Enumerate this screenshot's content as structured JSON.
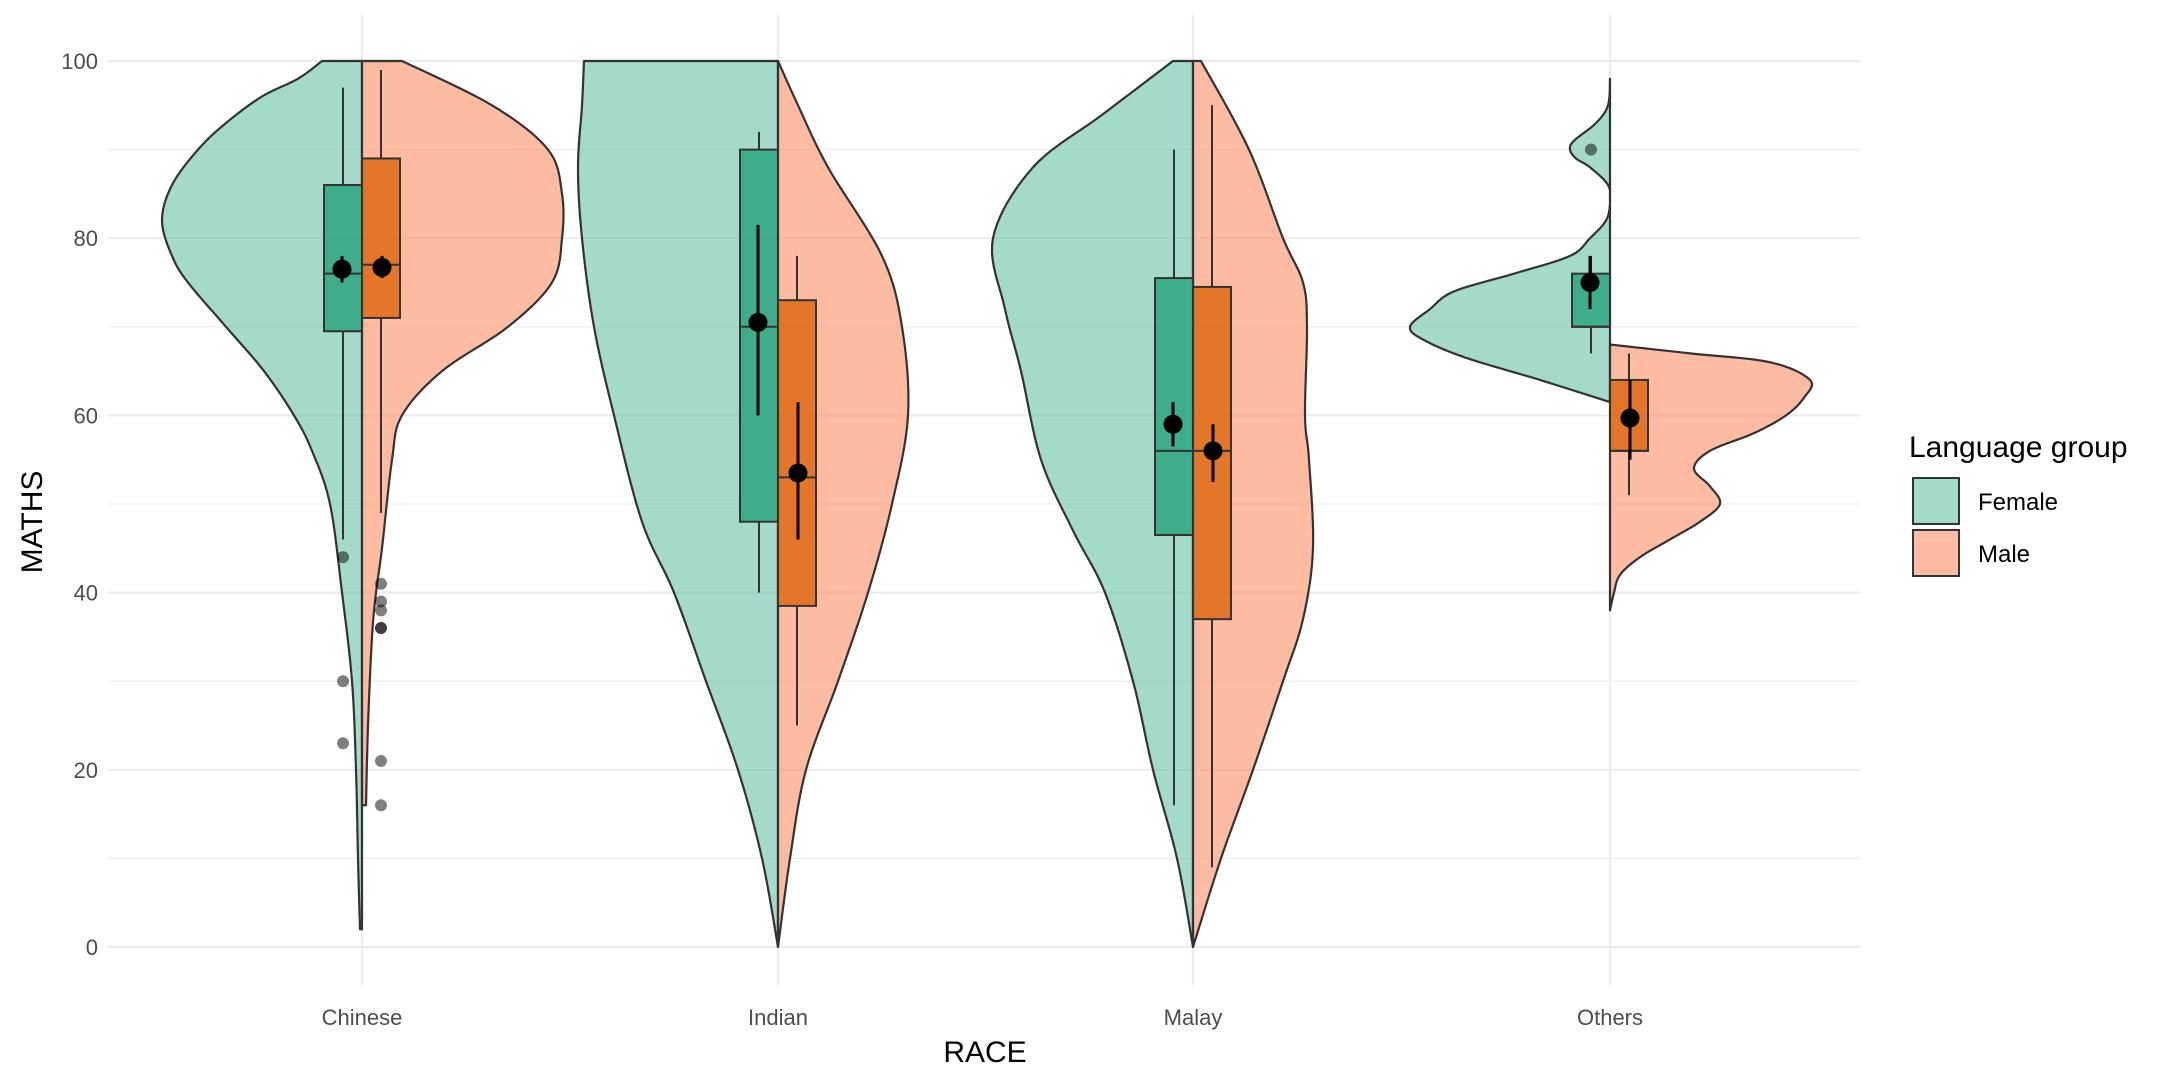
{
  "chart_data": {
    "type": "violin",
    "xlabel": "RACE",
    "ylabel": "MATHS",
    "ylim": [
      0,
      100
    ],
    "yticks": [
      0,
      20,
      40,
      60,
      80,
      100
    ],
    "categories": [
      "Chinese",
      "Indian",
      "Malay",
      "Others"
    ],
    "grid": true,
    "legend": {
      "title": "Language group",
      "placement": "right",
      "entries": [
        "Female",
        "Male"
      ]
    },
    "colors": {
      "Female_fill": "#66c2a5",
      "Male_fill": "#fc8d62",
      "Female_box": "#1b9e77",
      "Male_box": "#d95f02",
      "outline": "#333333",
      "grid": "#ebebeb"
    },
    "series": [
      {
        "name": "Female",
        "groups": [
          {
            "category": "Chinese",
            "violin_min": 2,
            "violin_max": 100,
            "density": [
              [
                2,
                0.01
              ],
              [
                10,
                0.02
              ],
              [
                20,
                0.03
              ],
              [
                30,
                0.05
              ],
              [
                40,
                0.1
              ],
              [
                50,
                0.16
              ],
              [
                56,
                0.25
              ],
              [
                60,
                0.34
              ],
              [
                65,
                0.49
              ],
              [
                70,
                0.68
              ],
              [
                75,
                0.87
              ],
              [
                78,
                0.95
              ],
              [
                82,
                1.0
              ],
              [
                86,
                0.95
              ],
              [
                90,
                0.82
              ],
              [
                93,
                0.68
              ],
              [
                96,
                0.5
              ],
              [
                98,
                0.32
              ],
              [
                100,
                0.2
              ]
            ],
            "box": {
              "q1": 69.5,
              "median": 76,
              "q3": 86,
              "whisker_low": 46,
              "whisker_high": 97
            },
            "mean": 76.5,
            "ci": [
              75,
              78
            ],
            "outliers": [
              44,
              30,
              23
            ]
          },
          {
            "category": "Indian",
            "violin_min": 0,
            "violin_max": 100,
            "density": [
              [
                0,
                0.0
              ],
              [
                10,
                0.08
              ],
              [
                20,
                0.2
              ],
              [
                30,
                0.36
              ],
              [
                40,
                0.52
              ],
              [
                48,
                0.68
              ],
              [
                60,
                0.82
              ],
              [
                70,
                0.92
              ],
              [
                80,
                0.98
              ],
              [
                88,
                1.0
              ],
              [
                95,
                0.98
              ],
              [
                100,
                0.97
              ]
            ],
            "box": {
              "q1": 48,
              "median": 70,
              "q3": 90,
              "whisker_low": 40,
              "whisker_high": 92
            },
            "mean": 70.5,
            "ci": [
              60,
              81.5
            ],
            "outliers": []
          },
          {
            "category": "Malay",
            "violin_min": 0,
            "violin_max": 100,
            "density": [
              [
                0,
                0.0
              ],
              [
                10,
                0.08
              ],
              [
                20,
                0.2
              ],
              [
                30,
                0.3
              ],
              [
                40,
                0.44
              ],
              [
                47,
                0.6
              ],
              [
                55,
                0.76
              ],
              [
                65,
                0.86
              ],
              [
                72,
                0.94
              ],
              [
                80,
                1.0
              ],
              [
                88,
                0.8
              ],
              [
                94,
                0.45
              ],
              [
                100,
                0.1
              ]
            ],
            "box": {
              "q1": 46.5,
              "median": 56,
              "q3": 75.5,
              "whisker_low": 16,
              "whisker_high": 90
            },
            "mean": 59,
            "ci": [
              56.5,
              61.5
            ],
            "outliers": []
          },
          {
            "category": "Others",
            "violin_min": 61.5,
            "violin_max": 98,
            "density": [
              [
                61.5,
                0.0
              ],
              [
                64,
                0.35
              ],
              [
                66.5,
                0.72
              ],
              [
                68.5,
                0.93
              ],
              [
                70,
                1.0
              ],
              [
                72,
                0.9
              ],
              [
                74,
                0.78
              ],
              [
                76,
                0.48
              ],
              [
                78,
                0.2
              ],
              [
                80,
                0.1
              ],
              [
                82,
                0.02
              ],
              [
                84,
                0.0
              ],
              [
                86,
                0.01
              ],
              [
                88,
                0.1
              ],
              [
                89,
                0.17
              ],
              [
                90,
                0.2
              ],
              [
                91,
                0.18
              ],
              [
                93,
                0.07
              ],
              [
                95,
                0.01
              ],
              [
                98,
                0.0
              ]
            ],
            "box": {
              "q1": 70,
              "median": 70,
              "q3": 76,
              "whisker_low": 67,
              "whisker_high": 78
            },
            "mean": 75,
            "ci": [
              72,
              78
            ],
            "outliers": [
              90
            ]
          }
        ]
      },
      {
        "name": "Male",
        "groups": [
          {
            "category": "Chinese",
            "violin_min": 16,
            "violin_max": 100,
            "density": [
              [
                16,
                0.02
              ],
              [
                25,
                0.03
              ],
              [
                35,
                0.05
              ],
              [
                40,
                0.07
              ],
              [
                45,
                0.1
              ],
              [
                55,
                0.15
              ],
              [
                60,
                0.2
              ],
              [
                65,
                0.4
              ],
              [
                70,
                0.73
              ],
              [
                75,
                0.95
              ],
              [
                80,
                1.0
              ],
              [
                85,
                1.0
              ],
              [
                90,
                0.93
              ],
              [
                95,
                0.65
              ],
              [
                100,
                0.2
              ]
            ],
            "box": {
              "q1": 71,
              "median": 77,
              "q3": 89,
              "whisker_low": 49,
              "whisker_high": 99
            },
            "mean": 76.7,
            "ci": [
              75.5,
              78
            ],
            "outliers": [
              41,
              39,
              38,
              36,
              36,
              21,
              16
            ]
          },
          {
            "category": "Indian",
            "violin_min": 0,
            "violin_max": 100,
            "density": [
              [
                0,
                0.0
              ],
              [
                10,
                0.06
              ],
              [
                20,
                0.14
              ],
              [
                30,
                0.3
              ],
              [
                40,
                0.45
              ],
              [
                50,
                0.57
              ],
              [
                60,
                0.65
              ],
              [
                70,
                0.62
              ],
              [
                78,
                0.52
              ],
              [
                88,
                0.25
              ],
              [
                95,
                0.1
              ],
              [
                100,
                0.0
              ]
            ],
            "box": {
              "q1": 38.5,
              "median": 53,
              "q3": 73,
              "whisker_low": 25,
              "whisker_high": 78
            },
            "mean": 53.5,
            "ci": [
              46,
              61.5
            ],
            "outliers": []
          },
          {
            "category": "Malay",
            "violin_min": 0,
            "violin_max": 100,
            "density": [
              [
                0,
                0.0
              ],
              [
                10,
                0.14
              ],
              [
                20,
                0.3
              ],
              [
                30,
                0.45
              ],
              [
                37,
                0.55
              ],
              [
                45,
                0.6
              ],
              [
                55,
                0.58
              ],
              [
                60,
                0.56
              ],
              [
                70,
                0.57
              ],
              [
                75,
                0.55
              ],
              [
                80,
                0.45
              ],
              [
                90,
                0.28
              ],
              [
                100,
                0.04
              ]
            ],
            "box": {
              "q1": 37,
              "median": 56,
              "q3": 74.5,
              "whisker_low": 9,
              "whisker_high": 95
            },
            "mean": 56,
            "ci": [
              52.5,
              59
            ],
            "outliers": []
          },
          {
            "category": "Others",
            "violin_min": 38,
            "violin_max": 68,
            "density": [
              [
                38,
                0.0
              ],
              [
                40,
                0.02
              ],
              [
                42,
                0.05
              ],
              [
                44,
                0.15
              ],
              [
                46,
                0.3
              ],
              [
                48,
                0.45
              ],
              [
                50,
                0.55
              ],
              [
                52,
                0.5
              ],
              [
                54,
                0.42
              ],
              [
                56,
                0.5
              ],
              [
                58,
                0.72
              ],
              [
                60,
                0.88
              ],
              [
                62,
                0.97
              ],
              [
                64,
                1.0
              ],
              [
                66,
                0.8
              ],
              [
                67,
                0.4
              ],
              [
                68,
                0.0
              ]
            ],
            "box": {
              "q1": 56,
              "median": 56,
              "q3": 64,
              "whisker_low": 51,
              "whisker_high": 67
            },
            "mean": 59.7,
            "ci": [
              55,
              64
            ],
            "outliers": []
          }
        ]
      }
    ]
  }
}
